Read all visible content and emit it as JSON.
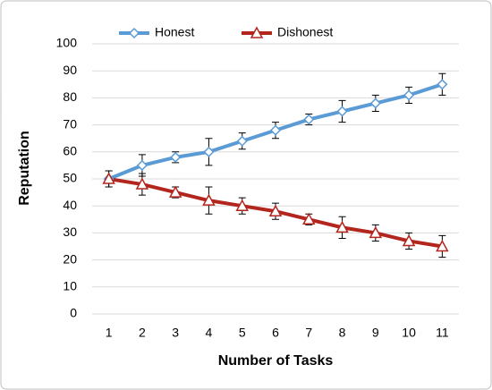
{
  "chart_data": {
    "type": "line",
    "x_label": "Number of Tasks",
    "y_label": "Reputation",
    "categories": [
      "1",
      "2",
      "3",
      "4",
      "5",
      "6",
      "7",
      "8",
      "9",
      "10",
      "11"
    ],
    "series": [
      {
        "name": "Honest",
        "color": "#5b9bd5",
        "marker": "diamond",
        "values": [
          50,
          55,
          58,
          60,
          64,
          68,
          72,
          75,
          78,
          81,
          85
        ],
        "errors": [
          3,
          4,
          2,
          5,
          3,
          3,
          2,
          4,
          3,
          3,
          4
        ]
      },
      {
        "name": "Dishonest",
        "color": "#b3261e",
        "marker": "triangle",
        "values": [
          50,
          48,
          45,
          42,
          40,
          38,
          35,
          32,
          30,
          27,
          25
        ],
        "errors": [
          3,
          4,
          2,
          5,
          3,
          3,
          2,
          4,
          3,
          3,
          4
        ]
      }
    ],
    "ylim": [
      0,
      100
    ],
    "yticks": [
      0,
      10,
      20,
      30,
      40,
      50,
      60,
      70,
      80,
      90,
      100
    ],
    "grid": true,
    "legend": "top"
  }
}
